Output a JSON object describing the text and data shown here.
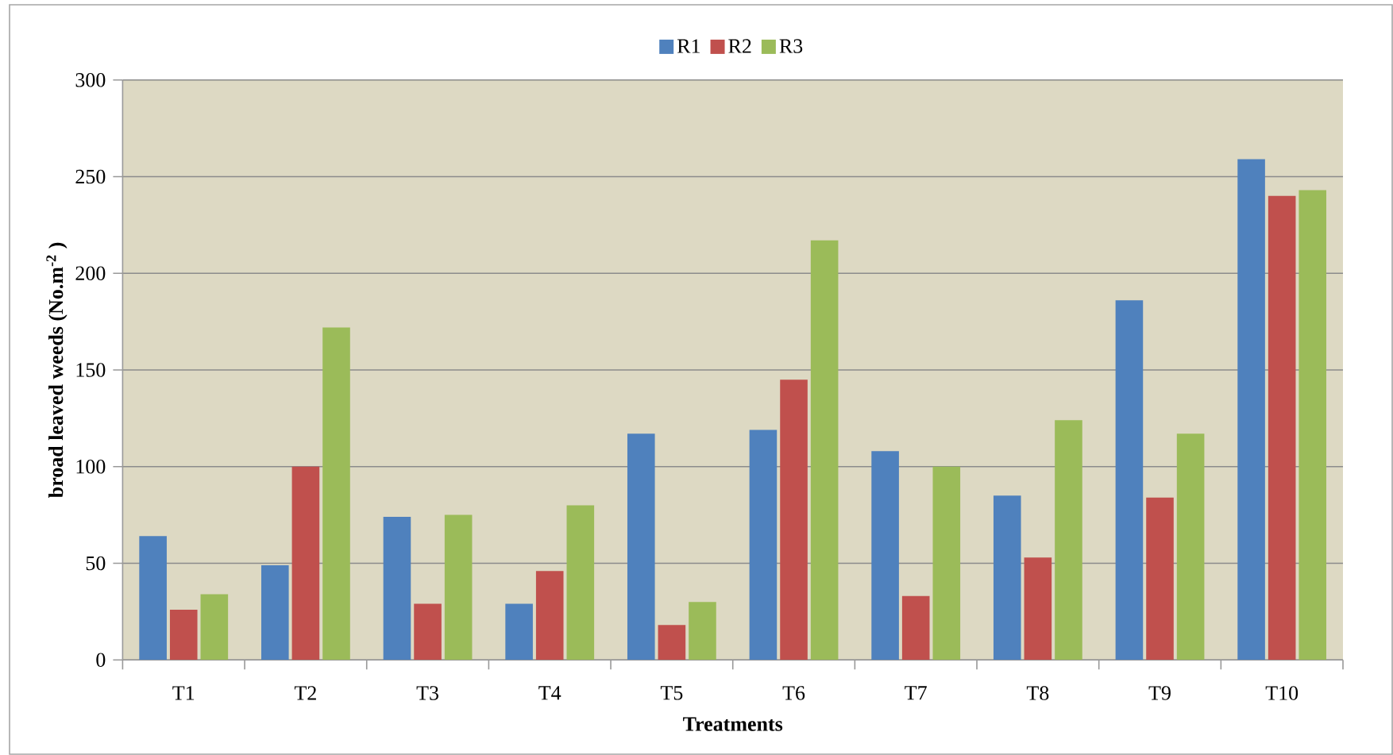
{
  "chart_data": {
    "type": "bar",
    "xlabel": "Treatments",
    "ylabel": "broad leaved weeds (No.m$^{-2}$ )",
    "categories": [
      "T1",
      "T2",
      "T3",
      "T4",
      "T5",
      "T6",
      "T7",
      "T8",
      "T9",
      "T10"
    ],
    "series": [
      {
        "name": "R1",
        "color": "#4f81bd",
        "values": [
          64,
          49,
          74,
          29,
          117,
          119,
          108,
          85,
          186,
          259
        ]
      },
      {
        "name": "R2",
        "color": "#c0504d",
        "values": [
          26,
          100,
          29,
          46,
          18,
          145,
          33,
          53,
          84,
          240
        ]
      },
      {
        "name": "R3",
        "color": "#9bbb59",
        "values": [
          34,
          172,
          75,
          80,
          30,
          217,
          100,
          124,
          117,
          243
        ]
      }
    ],
    "ylim": [
      0,
      300
    ],
    "yticks": [
      0,
      50,
      100,
      150,
      200,
      250,
      300
    ],
    "grid": "y",
    "legend": "top"
  }
}
